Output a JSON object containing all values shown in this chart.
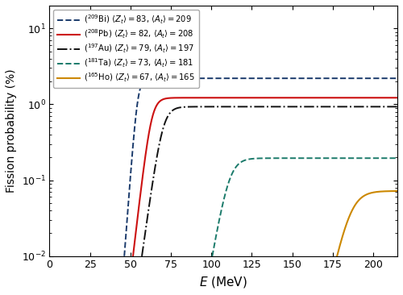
{
  "xlabel": "$E$ (MeV)",
  "ylabel": "Fission probability (%)",
  "xlim": [
    0,
    215
  ],
  "ylim": [
    0.01,
    20
  ],
  "xticks": [
    0,
    25,
    50,
    75,
    100,
    125,
    150,
    175,
    200
  ],
  "curves": [
    {
      "color": "#1a3a6b",
      "ls": "--",
      "E_mid": 54.5,
      "P_max": 2.2,
      "k": 0.65,
      "lw": 1.4
    },
    {
      "color": "#cc1111",
      "ls": "-",
      "E_mid": 63.0,
      "P_max": 1.22,
      "k": 0.42,
      "lw": 1.5
    },
    {
      "color": "#111111",
      "ls": "-.",
      "E_mid": 70.0,
      "P_max": 0.93,
      "k": 0.35,
      "lw": 1.4
    },
    {
      "color": "#1a7a6a",
      "ls": "--",
      "E_mid": 111.0,
      "P_max": 0.195,
      "k": 0.28,
      "lw": 1.4
    },
    {
      "color": "#cc8800",
      "ls": "-",
      "E_mid": 186.0,
      "P_max": 0.072,
      "k": 0.22,
      "lw": 1.5
    }
  ],
  "legend_labels": [
    "($^{209}$Bi) $\\langle Z_t\\rangle = 83$, $\\langle A_t\\rangle = 209$",
    "($^{208}$Pb) $\\langle Z_t\\rangle = 82$, $\\langle A_t\\rangle = 208$",
    "($^{197}$Au) $\\langle Z_t\\rangle = 79$, $\\langle A_t\\rangle = 197$",
    "($^{181}$Ta) $\\langle Z_t\\rangle = 73$, $\\langle A_t\\rangle = 181$",
    "($^{165}$Ho) $\\langle Z_t\\rangle = 67$, $\\langle A_t\\rangle = 165$"
  ],
  "legend_colors": [
    "#1a3a6b",
    "#cc1111",
    "#111111",
    "#1a7a6a",
    "#cc8800"
  ],
  "legend_ls": [
    "--",
    "-",
    "-.",
    "--",
    "-"
  ],
  "legend_lw": [
    1.4,
    1.5,
    1.4,
    1.4,
    1.5
  ]
}
